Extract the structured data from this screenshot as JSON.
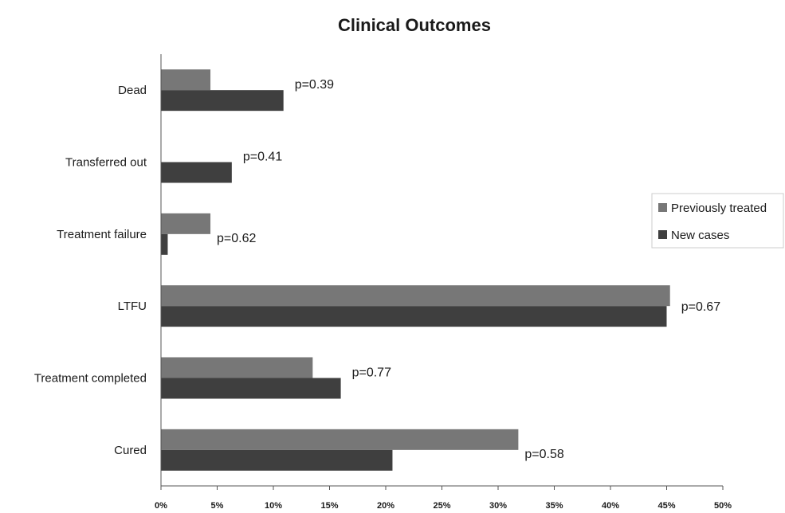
{
  "chart_data": {
    "type": "bar",
    "orientation": "horizontal",
    "title": "Clinical Outcomes",
    "xlabel": "",
    "ylabel": "",
    "xlim": [
      0,
      50
    ],
    "x_ticks": [
      "0%",
      "5%",
      "10%",
      "15%",
      "20%",
      "25%",
      "30%",
      "35%",
      "40%",
      "45%",
      "50%"
    ],
    "categories": [
      "Dead",
      "Transferred out",
      "Treatment failure",
      "LTFU",
      "Treatment completed",
      "Cured"
    ],
    "series": [
      {
        "name": "Previously treated",
        "color": "#777777",
        "values": [
          4.4,
          0,
          4.4,
          45.3,
          13.5,
          31.8
        ]
      },
      {
        "name": "New cases",
        "color": "#3f3f3f",
        "values": [
          10.9,
          6.3,
          0.6,
          45.0,
          16.0,
          20.6
        ]
      }
    ],
    "annotations": [
      "p=0.39",
      "p=0.41",
      "p=0.62",
      "p=0.67",
      "p=0.77",
      "p=0.58"
    ],
    "legend": "right",
    "grid": false
  }
}
